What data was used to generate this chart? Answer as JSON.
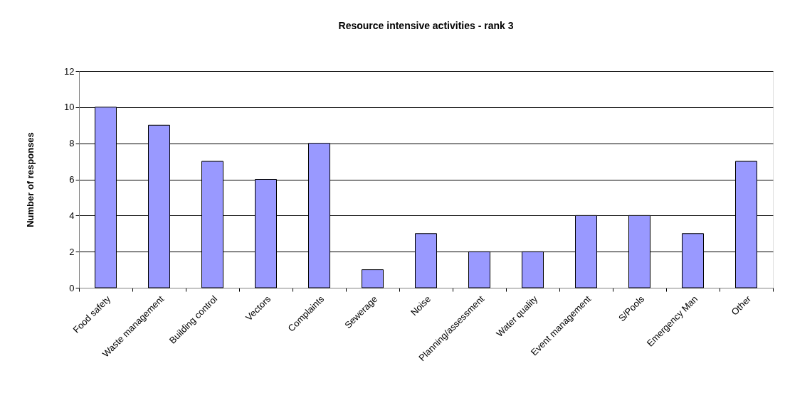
{
  "chart_data": {
    "type": "bar",
    "title": "Resource intensive activities - rank 3",
    "ylabel": "Number of responses",
    "categories": [
      "Food safety",
      "Waste management",
      "Building control",
      "Vectors",
      "Complaints",
      "Sewerage",
      "Noise",
      "Planning/assessment",
      "Water quality",
      "Event management",
      "S/Pools",
      "Emergency Man",
      "Other"
    ],
    "values": [
      10,
      9,
      7,
      6,
      8,
      1,
      3,
      2,
      2,
      4,
      4,
      3,
      7
    ],
    "color": "#9999ff",
    "ylim": [
      0,
      12
    ],
    "yticks": [
      0,
      2,
      4,
      6,
      8,
      10,
      12
    ],
    "grid": "y"
  }
}
